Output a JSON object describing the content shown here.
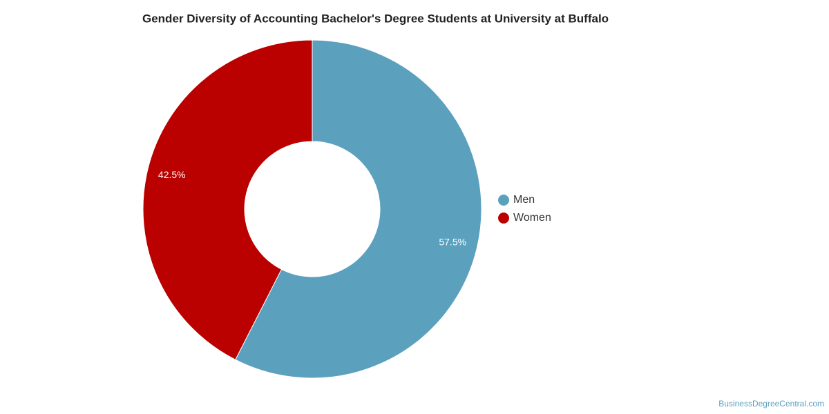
{
  "chart_data": {
    "type": "donut",
    "title": "Gender Diversity of Accounting Bachelor's Degree Students at University at Buffalo",
    "categories": [
      "Men",
      "Women"
    ],
    "values": [
      57.5,
      42.5
    ],
    "value_labels": [
      "57.5%",
      "42.5%"
    ],
    "colors": [
      "#5ba1be",
      "#bb0000"
    ],
    "source": "BusinessDegreeCentral.com"
  }
}
